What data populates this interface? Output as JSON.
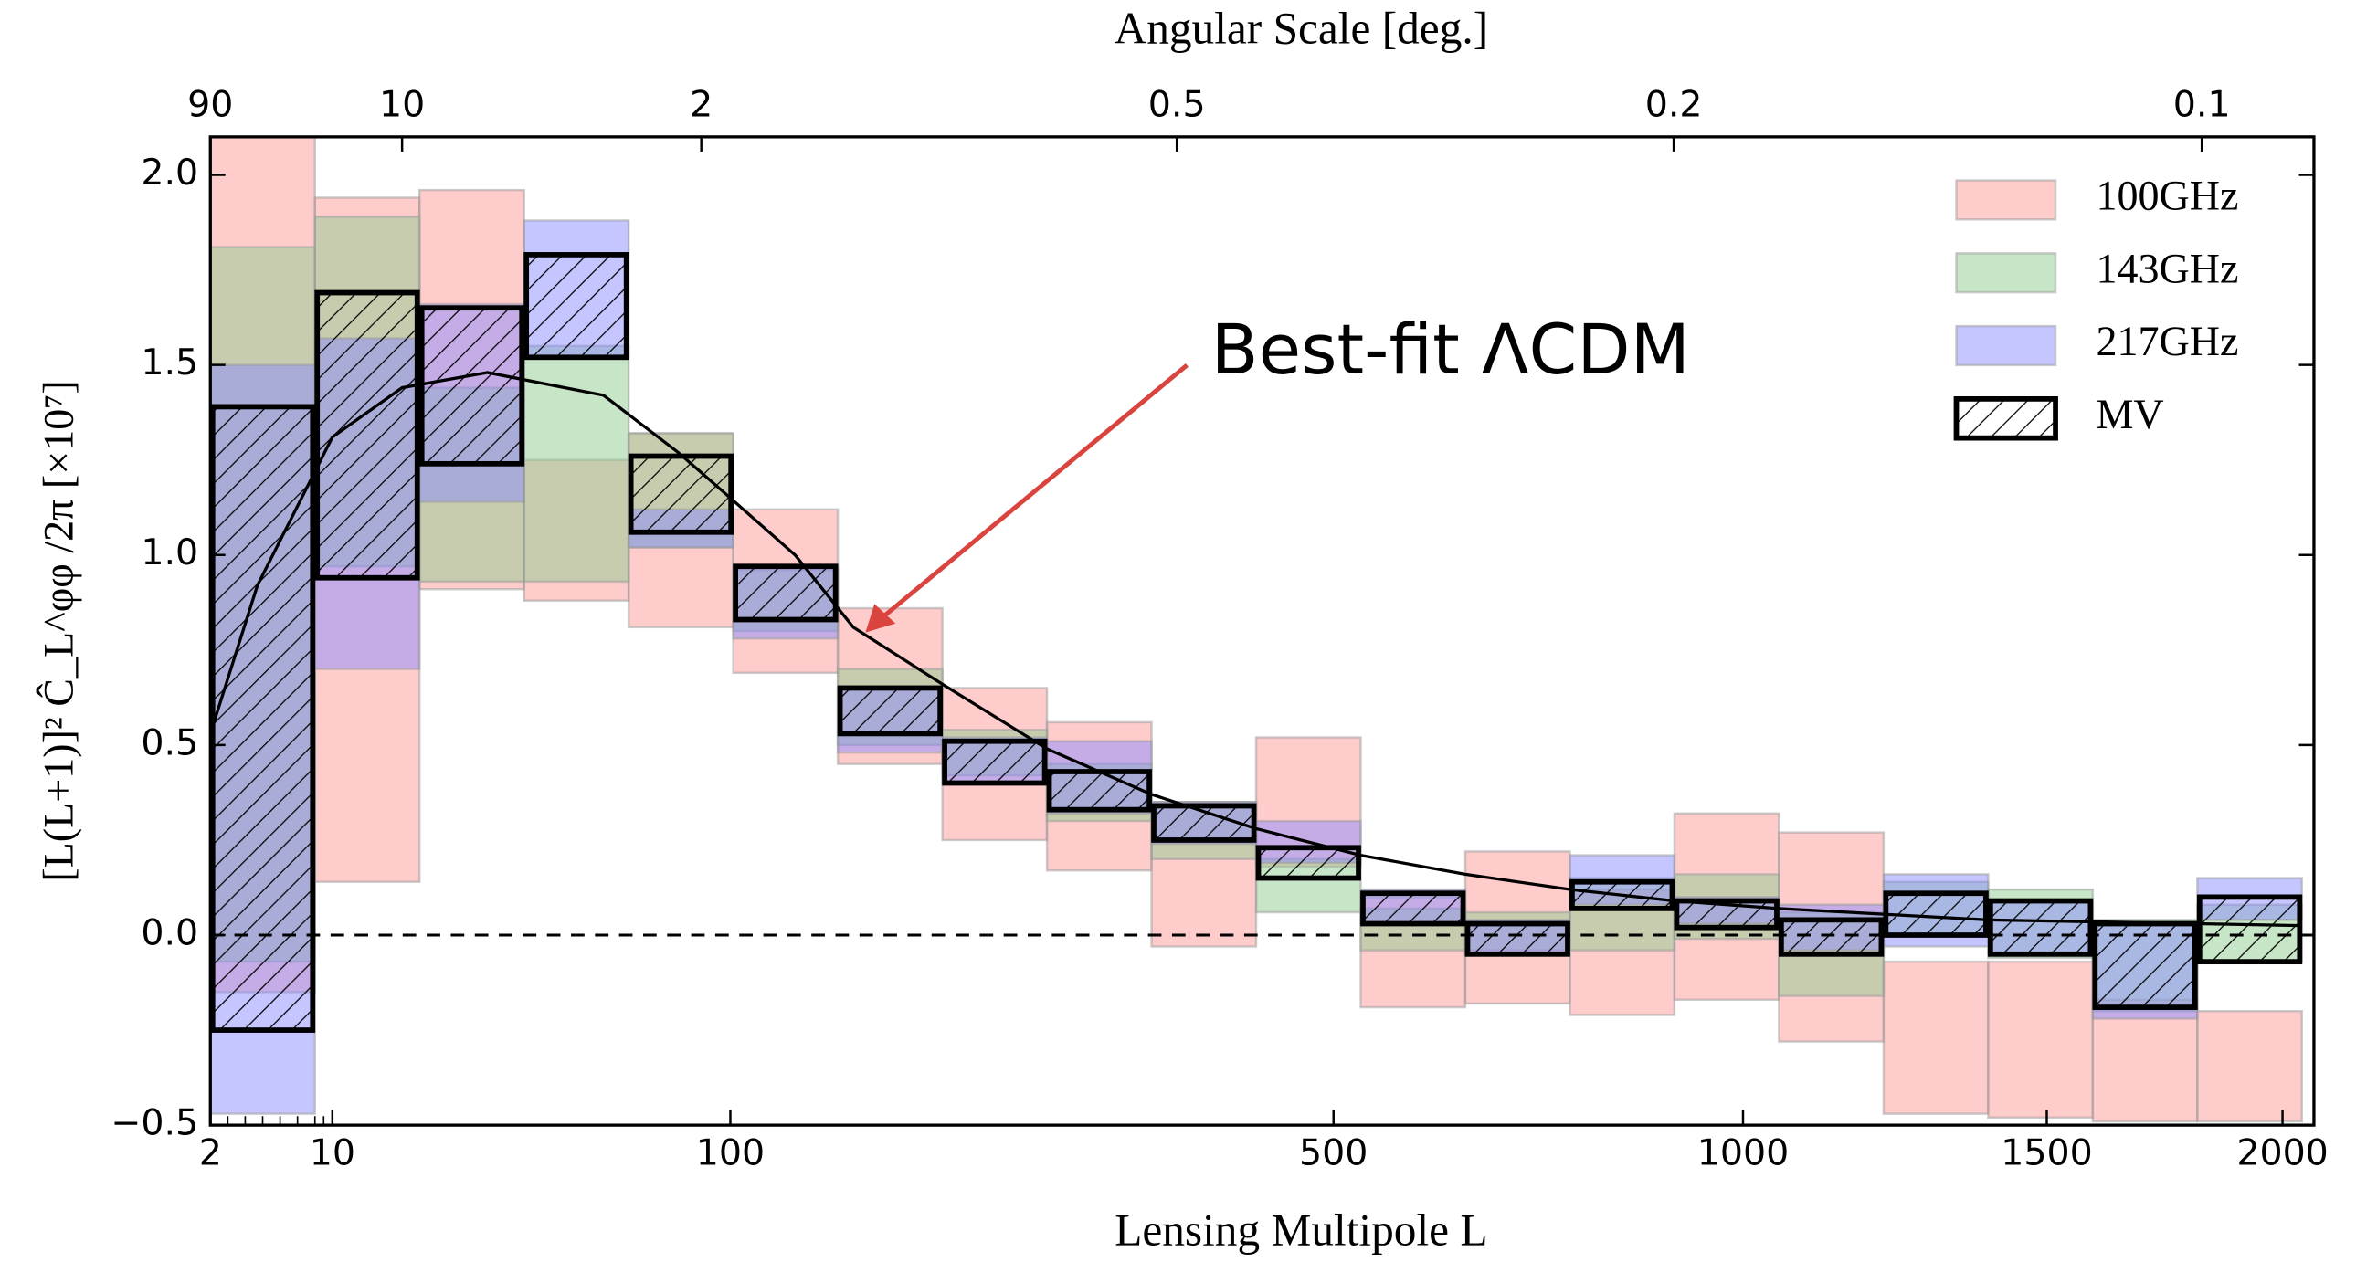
{
  "chart_data": {
    "type": "box",
    "title": "Angular Scale [deg.]",
    "xlabel": "Lensing Multipole L",
    "ylabel": "[L(L+1)]² Ĉ_L^φφ /2π  [×10⁷]",
    "annotation": "Best-fit ΛCDM",
    "bin_edges": [
      2,
      8,
      20,
      40,
      65,
      101,
      145,
      199,
      264,
      339,
      426,
      526,
      638,
      763,
      901,
      1052,
      1216,
      1393,
      1584,
      1789,
      2048
    ],
    "xticks": [
      2,
      10,
      100,
      500,
      1000,
      1500,
      2000
    ],
    "xminor": [
      3,
      4,
      5,
      6,
      7,
      8,
      9
    ],
    "top_ticks": [
      90,
      10,
      2,
      0.5,
      0.2,
      0.1
    ],
    "ylim": [
      -0.5,
      2.1
    ],
    "yticks": [
      {
        "value": -0.5,
        "label": "−0.5"
      },
      {
        "value": 0,
        "label": "0.0"
      },
      {
        "value": 0.5,
        "label": "0.5"
      },
      {
        "value": 1,
        "label": "1.0"
      },
      {
        "value": 1.5,
        "label": "1.5"
      },
      {
        "value": 2,
        "label": "2.0"
      }
    ],
    "hline": 0,
    "legend": "upper right",
    "series": [
      {
        "name": "100GHz",
        "color": "#ff9a9a",
        "low": [
          -0.15,
          0.14,
          0.91,
          0.88,
          0.81,
          0.69,
          0.45,
          0.25,
          0.17,
          -0.03,
          0.18,
          -0.19,
          -0.18,
          -0.21,
          -0.17,
          -0.28,
          -0.47,
          -0.48,
          -0.49,
          -0.49
        ],
        "high": [
          2.4,
          1.94,
          1.96,
          1.25,
          1.32,
          1.12,
          0.86,
          0.65,
          0.56,
          0.35,
          0.52,
          0.1,
          0.22,
          0.12,
          0.32,
          0.27,
          -0.07,
          -0.07,
          -0.17,
          -0.2
        ]
      },
      {
        "name": "143GHz",
        "color": "#8fcc8f",
        "low": [
          -0.07,
          0.97,
          0.93,
          0.93,
          1.02,
          0.8,
          0.5,
          0.42,
          0.3,
          0.2,
          0.06,
          -0.04,
          -0.04,
          -0.04,
          -0.01,
          -0.16,
          0.0,
          -0.06,
          -0.2,
          -0.07
        ],
        "high": [
          1.81,
          1.89,
          1.44,
          1.55,
          1.32,
          0.96,
          0.7,
          0.54,
          0.45,
          0.35,
          0.2,
          0.07,
          0.06,
          0.15,
          0.16,
          0.06,
          0.14,
          0.12,
          0.04,
          0.08
        ]
      },
      {
        "name": "217GHz",
        "color": "#8c8cff",
        "low": [
          -0.47,
          0.7,
          1.14,
          1.52,
          1.02,
          0.78,
          0.48,
          0.4,
          0.32,
          0.24,
          0.19,
          0.03,
          -0.05,
          0.08,
          0.03,
          -0.04,
          -0.03,
          -0.05,
          -0.22,
          0.04
        ],
        "high": [
          1.5,
          1.57,
          1.66,
          1.88,
          1.12,
          0.97,
          0.65,
          0.52,
          0.51,
          0.35,
          0.3,
          0.12,
          0.04,
          0.21,
          0.1,
          0.08,
          0.16,
          0.09,
          0.03,
          0.15
        ]
      },
      {
        "name": "MV",
        "color": "#000000",
        "hatch": true,
        "low": [
          -0.25,
          0.94,
          1.24,
          1.52,
          1.06,
          0.83,
          0.53,
          0.4,
          0.33,
          0.25,
          0.15,
          0.03,
          -0.05,
          0.07,
          0.02,
          -0.05,
          0.0,
          -0.05,
          -0.19,
          -0.07
        ],
        "high": [
          1.39,
          1.69,
          1.65,
          1.79,
          1.26,
          0.97,
          0.65,
          0.51,
          0.43,
          0.34,
          0.23,
          0.11,
          0.03,
          0.14,
          0.09,
          0.04,
          0.11,
          0.09,
          0.03,
          0.1
        ]
      }
    ],
    "model": {
      "x": [
        2,
        4.7,
        10,
        18,
        33,
        59,
        82,
        100,
        127,
        153,
        199,
        264,
        339,
        426,
        526,
        638,
        763,
        901,
        1052,
        1216,
        1393,
        1584,
        2048
      ],
      "y": [
        0.53,
        0.92,
        1.31,
        1.44,
        1.48,
        1.42,
        1.27,
        1.15,
        1.0,
        0.81,
        0.66,
        0.49,
        0.37,
        0.28,
        0.21,
        0.16,
        0.12,
        0.09,
        0.07,
        0.055,
        0.04,
        0.035,
        0.025
      ]
    }
  }
}
